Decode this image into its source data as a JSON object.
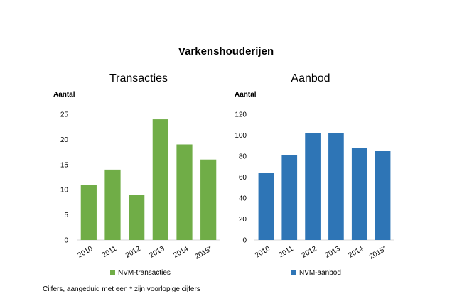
{
  "title": "Varkenshouderijen",
  "footnote": "Cijfers, aangeduid met een * zijn voorlopige cijfers",
  "chart_data": [
    {
      "type": "bar",
      "title": "Transacties",
      "ylabel": "Aantal",
      "xlabel": "",
      "categories": [
        "2010",
        "2011",
        "2012",
        "2013",
        "2014",
        "2015*"
      ],
      "series": [
        {
          "name": "NVM-transacties",
          "values": [
            11,
            14,
            9,
            24,
            19,
            16
          ],
          "color": "#70ad47"
        }
      ],
      "ylim": [
        0,
        25
      ],
      "yticks": [
        0,
        5,
        10,
        15,
        20,
        25
      ],
      "grid": false,
      "legend": "bottom"
    },
    {
      "type": "bar",
      "title": "Aanbod",
      "ylabel": "Aantal",
      "xlabel": "",
      "categories": [
        "2010",
        "2011",
        "2012",
        "2013",
        "2014",
        "2015*"
      ],
      "series": [
        {
          "name": "NVM-aanbod",
          "values": [
            64,
            81,
            102,
            102,
            88,
            85
          ],
          "color": "#2e75b6"
        }
      ],
      "ylim": [
        0,
        120
      ],
      "yticks": [
        0,
        20,
        40,
        60,
        80,
        100,
        120
      ],
      "grid": false,
      "legend": "bottom"
    }
  ]
}
